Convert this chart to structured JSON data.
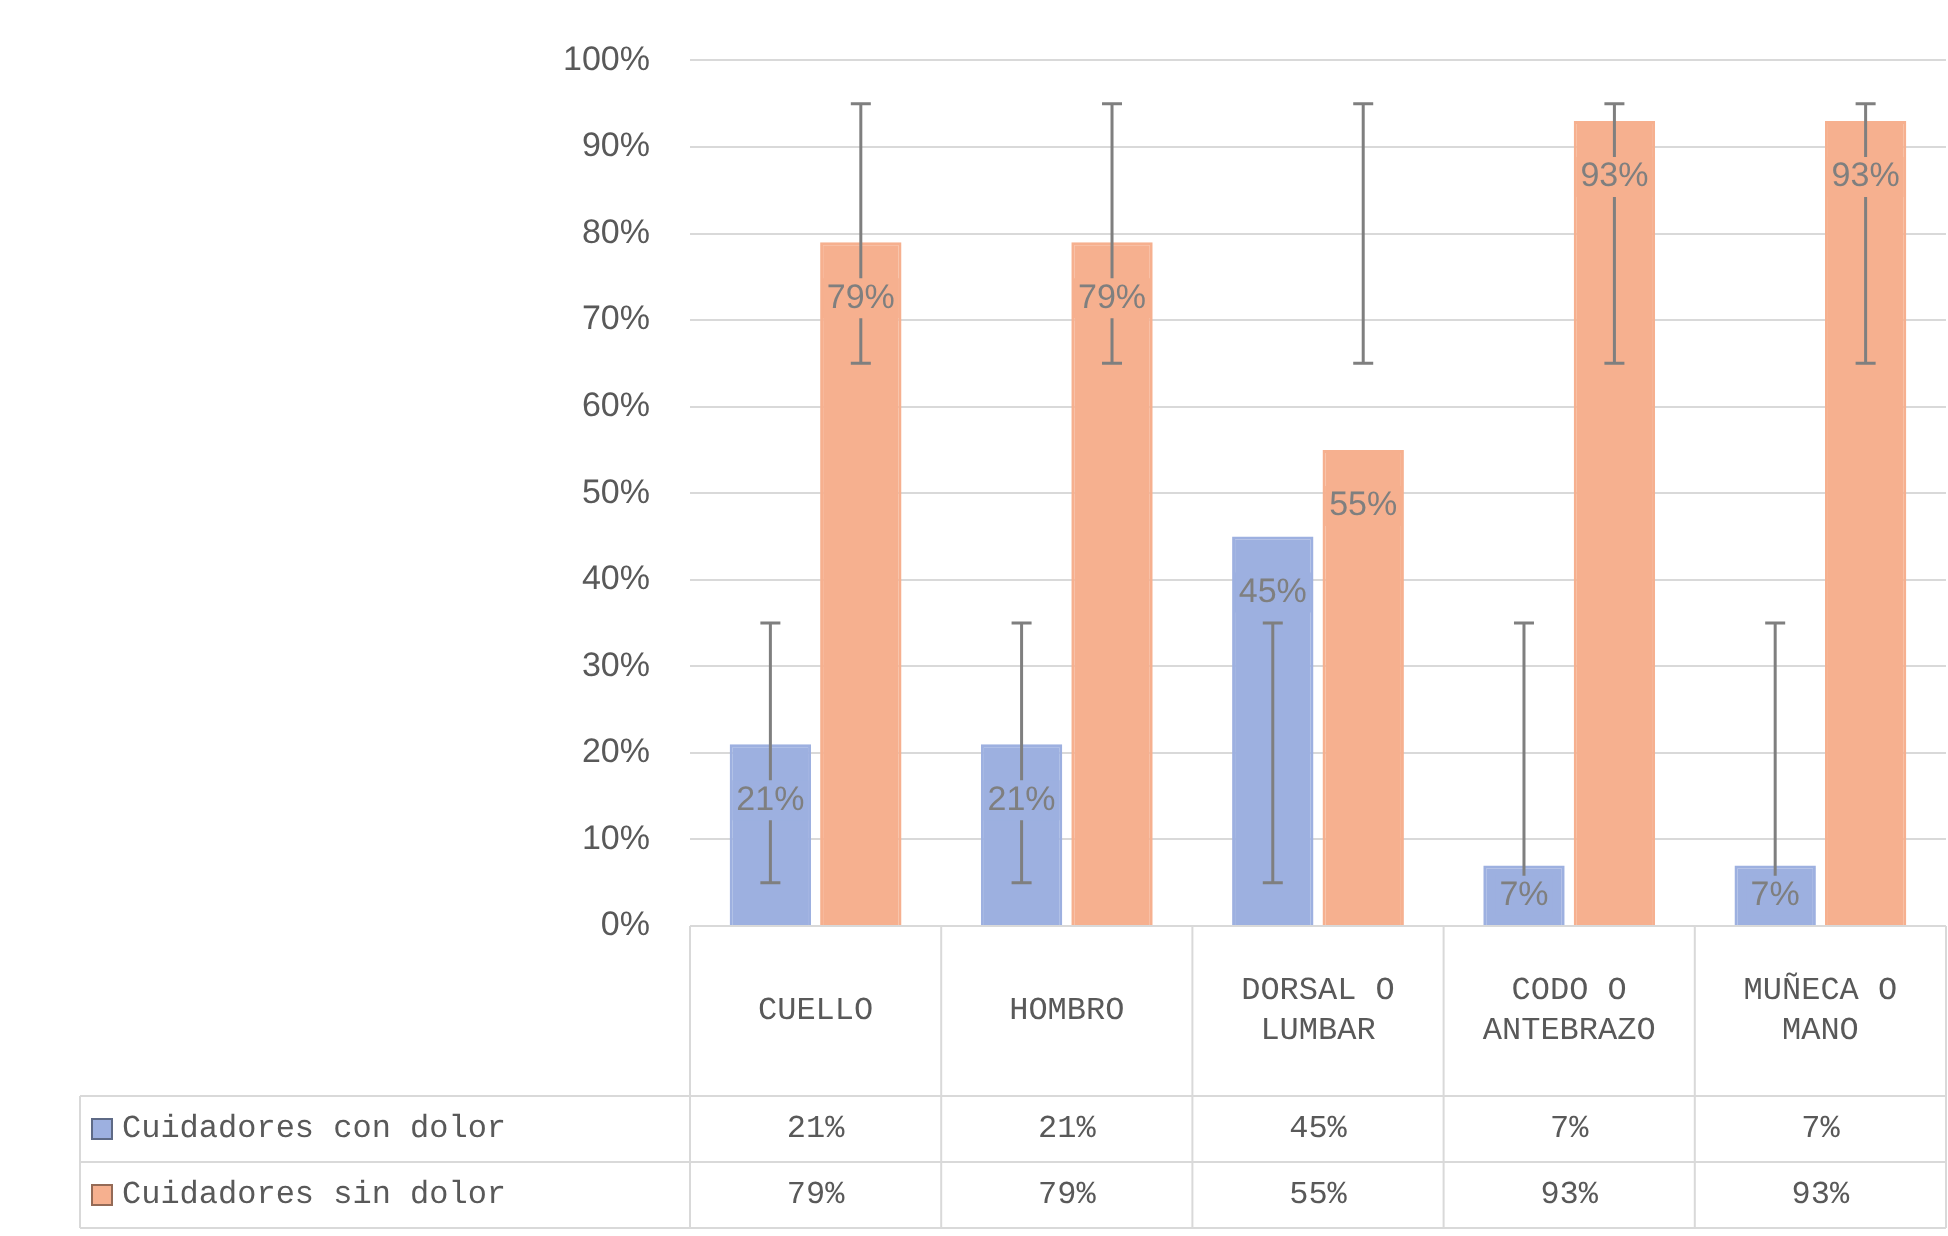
{
  "chart_data": {
    "type": "bar",
    "categories": [
      "CUELLO",
      "HOMBRO",
      "DORSAL O LUMBAR",
      "CODO O ANTEBRAZO",
      "MUÑECA O MANO"
    ],
    "series": [
      {
        "name": "Cuidadores con dolor",
        "color": "#9db0e0",
        "values": [
          21,
          21,
          45,
          7,
          7
        ],
        "value_labels": [
          "21%",
          "21%",
          "45%",
          "7%",
          "7%"
        ],
        "errors": [
          [
            5,
            35
          ],
          [
            5,
            35
          ],
          [
            5,
            35
          ],
          [
            5,
            35
          ],
          [
            5,
            35
          ]
        ]
      },
      {
        "name": "Cuidadores sin dolor",
        "color": "#f6b08f",
        "values": [
          79,
          79,
          55,
          93,
          93
        ],
        "value_labels": [
          "79%",
          "79%",
          "55%",
          "93%",
          "93%"
        ],
        "errors": [
          [
            65,
            95
          ],
          [
            65,
            95
          ],
          [
            65,
            95
          ],
          [
            65,
            95
          ],
          [
            65,
            95
          ]
        ]
      }
    ],
    "ylim": [
      0,
      100
    ],
    "yticks": [
      {
        "value": 0,
        "label": "0%"
      },
      {
        "value": 10,
        "label": "10%"
      },
      {
        "value": 20,
        "label": "20%"
      },
      {
        "value": 30,
        "label": "30%"
      },
      {
        "value": 40,
        "label": "40%"
      },
      {
        "value": 50,
        "label": "50%"
      },
      {
        "value": 60,
        "label": "60%"
      },
      {
        "value": 70,
        "label": "70%"
      },
      {
        "value": 80,
        "label": "80%"
      },
      {
        "value": 90,
        "label": "90%"
      },
      {
        "value": 100,
        "label": "100%"
      }
    ],
    "grid": "y",
    "legend": "bottom"
  }
}
